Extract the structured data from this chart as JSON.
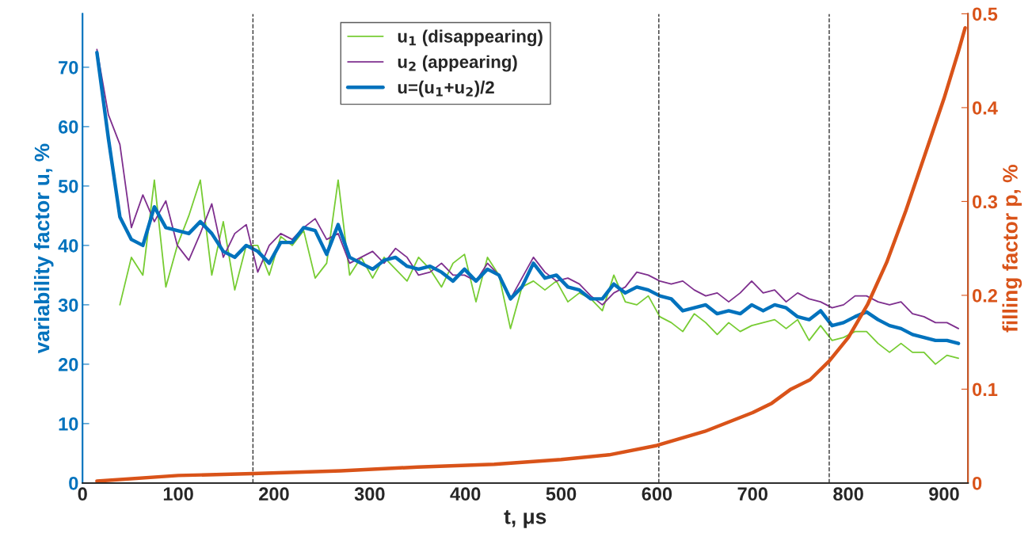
{
  "chart_data": {
    "type": "line",
    "xlabel": "t, μs",
    "ylabel": "variability factor u, %",
    "y2label": "filling factor p, %",
    "x": [
      15,
      27,
      39,
      51,
      63,
      75,
      87,
      99,
      111,
      123,
      135,
      147,
      159,
      171,
      183,
      195,
      207,
      219,
      231,
      243,
      255,
      267,
      279,
      291,
      303,
      315,
      327,
      339,
      351,
      363,
      375,
      387,
      399,
      411,
      423,
      435,
      447,
      459,
      471,
      483,
      495,
      507,
      519,
      531,
      543,
      555,
      567,
      579,
      591,
      603,
      615,
      627,
      639,
      651,
      663,
      675,
      687,
      699,
      711,
      723,
      735,
      747,
      759,
      771,
      783,
      795,
      807,
      819,
      831,
      843,
      855,
      867,
      879,
      891,
      903,
      915
    ],
    "series": [
      {
        "name": "u$_{1}$ (disappearing)",
        "color": "#77cc33",
        "values": [
          null,
          null,
          30,
          38,
          35,
          51,
          33,
          40,
          45,
          51,
          35,
          44,
          32.5,
          40,
          40,
          35,
          41.5,
          40,
          42.5,
          34.5,
          37,
          51,
          35,
          38,
          34.5,
          38,
          36,
          34,
          38,
          36,
          33,
          37,
          38.5,
          30.5,
          38,
          35,
          26,
          33,
          34,
          32.5,
          34,
          30.5,
          32,
          31,
          29,
          35,
          30.5,
          30,
          31.5,
          28,
          27,
          25.5,
          28.5,
          27,
          25,
          27,
          25.5,
          26.5,
          27,
          27.5,
          26,
          27.5,
          24,
          26.5,
          24,
          24.5,
          25.5,
          25.5,
          23.5,
          22,
          23.5,
          22,
          22,
          20,
          21.5,
          21
        ]
      },
      {
        "name": "u$_{2}$ (appearing)",
        "color": "#7e2f8e",
        "values": [
          73,
          62,
          57,
          43,
          48.5,
          44,
          47.5,
          40,
          37.5,
          42,
          47,
          38,
          42,
          43.5,
          35.5,
          40,
          42,
          41,
          43,
          44.5,
          41,
          42,
          37,
          38,
          39,
          37,
          39.5,
          38,
          35,
          35.5,
          37,
          35,
          35,
          34,
          37,
          35,
          31,
          34.5,
          38,
          35.5,
          34,
          34.5,
          33.5,
          31.5,
          30,
          32,
          33,
          35.5,
          35,
          34,
          33.5,
          34,
          32.5,
          31.5,
          32,
          30.5,
          32,
          34,
          32,
          32.5,
          30.5,
          32,
          31,
          30.5,
          29.5,
          30,
          31.5,
          31.5,
          30.5,
          30,
          30.5,
          28.5,
          28,
          27,
          27,
          26
        ]
      },
      {
        "name": "u=(u$_{1}$+u$_{2}$)/2",
        "color": "#0072bd",
        "values": [
          72.5,
          58,
          44.8,
          41,
          40,
          46.5,
          43,
          42.5,
          42,
          44,
          42,
          39,
          38,
          40,
          39,
          37,
          40.5,
          40.5,
          43,
          42.5,
          38.5,
          43.5,
          38,
          37,
          36,
          37.5,
          38,
          36.5,
          36,
          36.5,
          35.5,
          34,
          36,
          34,
          36,
          35,
          31,
          33,
          37,
          34.5,
          35,
          33,
          32.5,
          31,
          31,
          33.5,
          32,
          33,
          32.5,
          31.5,
          31,
          29,
          29.5,
          30,
          28.5,
          29,
          28.5,
          30,
          29,
          30,
          29.5,
          28,
          27.5,
          29,
          26.5,
          27,
          28,
          28.8,
          27.5,
          26.5,
          26,
          25,
          24.5,
          24,
          24,
          23.5
        ]
      },
      {
        "color": "#d95319",
        "axis": "y2",
        "x": [
          15,
          100,
          178,
          270,
          350,
          430,
          500,
          550,
          600,
          650,
          700,
          720,
          740,
          760,
          780,
          800,
          820,
          840,
          860,
          880,
          900,
          915,
          922
        ],
        "values": [
          0.002,
          0.008,
          0.01,
          0.013,
          0.017,
          0.02,
          0.025,
          0.03,
          0.04,
          0.055,
          0.075,
          0.085,
          0.1,
          0.11,
          0.13,
          0.155,
          0.19,
          0.235,
          0.29,
          0.35,
          0.41,
          0.46,
          0.485
        ]
      }
    ],
    "xlim": [
      0,
      925
    ],
    "xticks": [
      0,
      100,
      200,
      300,
      400,
      500,
      600,
      700,
      800,
      900
    ],
    "ylim": [
      0,
      79
    ],
    "yticks": [
      0,
      10,
      20,
      30,
      40,
      50,
      60,
      70
    ],
    "y2lim": [
      0,
      0.5
    ],
    "y2ticks": [
      0,
      0.1,
      0.2,
      0.3,
      0.4,
      0.5
    ],
    "ref_lines": [
      {
        "axis": "x",
        "value": 178,
        "color": "#333333",
        "line_style": "dashed"
      },
      {
        "axis": "x",
        "value": 602,
        "color": "#333333",
        "line_style": "dashed"
      },
      {
        "axis": "x",
        "value": 780,
        "color": "#333333",
        "line_style": "dashed"
      }
    ],
    "legend": "top",
    "grid": false,
    "line_style": "solid",
    "marker": "none"
  }
}
